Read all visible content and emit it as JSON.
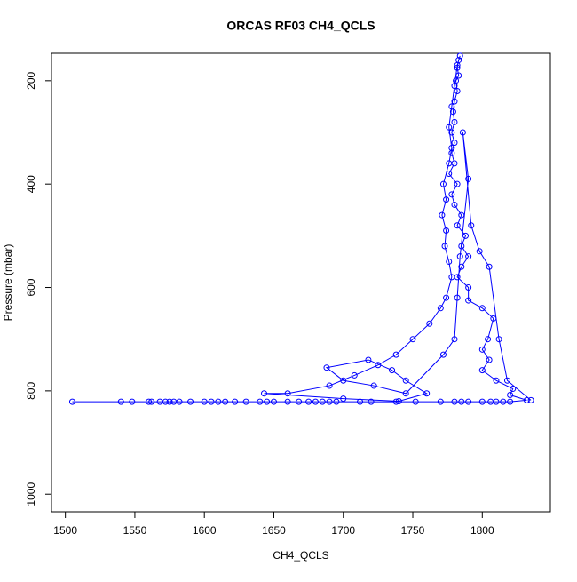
{
  "chart_data": {
    "type": "line",
    "title": "ORCAS RF03 CH4_QCLS",
    "x_label": "CH4_QCLS",
    "y_label": "Pressure (mbar)",
    "xlim": [
      1490,
      1849
    ],
    "xticks": [
      1500,
      1550,
      1600,
      1650,
      1700,
      1750,
      1800
    ],
    "ylim": [
      1034,
      147
    ],
    "yticks": [
      200,
      400,
      600,
      800,
      1000
    ],
    "series": [
      {
        "color": "#0000ff",
        "x": [
          1505,
          1540,
          1548,
          1560,
          1562,
          1568,
          1572,
          1575,
          1578,
          1582,
          1590,
          1600,
          1605,
          1610,
          1615,
          1622,
          1630,
          1640,
          1645,
          1650,
          1660,
          1668,
          1675,
          1680,
          1685,
          1690,
          1695,
          1712,
          1720,
          1738,
          1752,
          1770,
          1780,
          1785,
          1790,
          1800,
          1806,
          1810,
          1815,
          1820,
          1832,
          1820,
          1822,
          1810,
          1800,
          1805,
          1800,
          1804,
          1808,
          1800,
          1790,
          1790,
          1782,
          1785,
          1790,
          1785,
          1788,
          1782,
          1785,
          1780,
          1778,
          1782,
          1776,
          1780,
          1778,
          1780,
          1778,
          1780,
          1779,
          1780,
          1782,
          1781,
          1783,
          1782,
          1783,
          1784,
          1782,
          1780,
          1778,
          1776,
          1778,
          1776,
          1772,
          1774,
          1771,
          1774,
          1773,
          1776,
          1778,
          1774,
          1770,
          1762,
          1750,
          1738,
          1725,
          1708,
          1690,
          1660,
          1643,
          1700,
          1740,
          1760,
          1745,
          1735,
          1718,
          1688,
          1700,
          1722,
          1745,
          1772,
          1780,
          1782,
          1784,
          1790,
          1786,
          1792,
          1798,
          1805,
          1812,
          1818,
          1835
        ],
        "values": [
          821,
          821,
          821,
          821,
          821,
          821,
          821,
          821,
          821,
          821,
          821,
          821,
          821,
          821,
          821,
          821,
          821,
          821,
          821,
          821,
          821,
          821,
          821,
          821,
          821,
          821,
          821,
          821,
          821,
          821,
          821,
          821,
          821,
          821,
          821,
          821,
          821,
          821,
          821,
          821,
          818,
          808,
          796,
          780,
          760,
          740,
          720,
          700,
          660,
          640,
          625,
          600,
          580,
          560,
          540,
          520,
          500,
          480,
          460,
          440,
          420,
          400,
          380,
          360,
          340,
          320,
          300,
          280,
          260,
          240,
          220,
          200,
          190,
          175,
          160,
          152,
          170,
          210,
          250,
          290,
          330,
          360,
          400,
          430,
          460,
          490,
          520,
          550,
          580,
          620,
          640,
          670,
          700,
          730,
          750,
          770,
          790,
          805,
          805,
          815,
          820,
          805,
          780,
          760,
          740,
          755,
          780,
          790,
          805,
          730,
          700,
          620,
          540,
          390,
          300,
          480,
          530,
          560,
          700,
          780,
          818
        ]
      }
    ]
  }
}
